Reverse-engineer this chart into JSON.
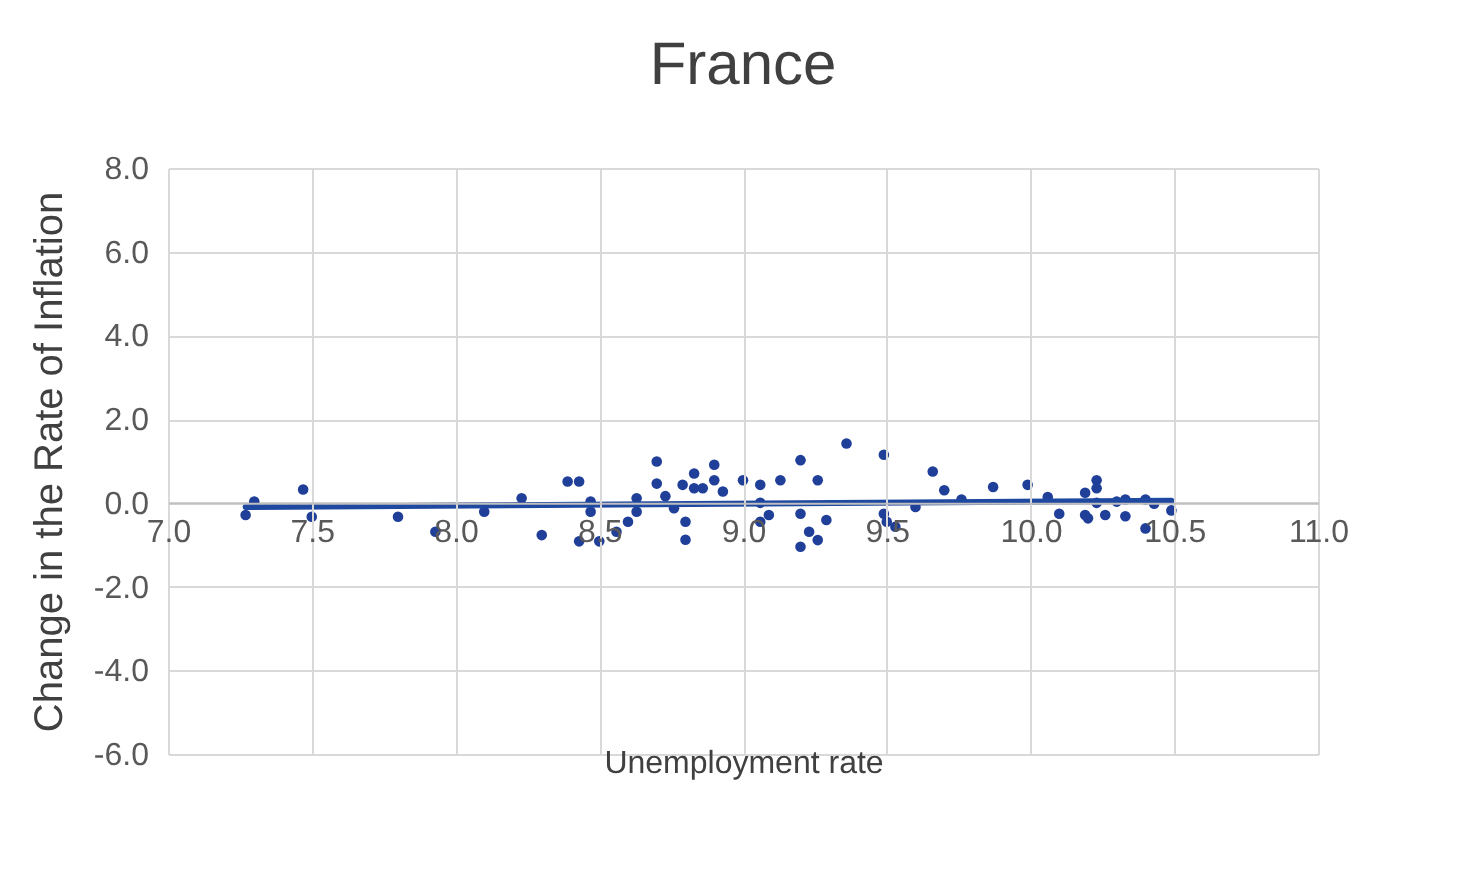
{
  "chart_data": {
    "type": "scatter",
    "title": "France",
    "xlabel": "Unemployment rate",
    "ylabel": "Change in the Rate of Inflation",
    "xlim": [
      7,
      11
    ],
    "xticks": [
      {
        "value": 7,
        "label": "7.0"
      },
      {
        "value": 7.5,
        "label": "7.5"
      },
      {
        "value": 8,
        "label": "8.0"
      },
      {
        "value": 8.5,
        "label": "8.5"
      },
      {
        "value": 9,
        "label": "9.0"
      },
      {
        "value": 9.5,
        "label": "9.5"
      },
      {
        "value": 10,
        "label": "10.0"
      },
      {
        "value": 10.5,
        "label": "10.5"
      },
      {
        "value": 11,
        "label": "11.0"
      }
    ],
    "ylim": [
      -6,
      8
    ],
    "yticks": [
      {
        "value": -6,
        "label": "-6.0"
      },
      {
        "value": -4,
        "label": "-4.0"
      },
      {
        "value": -2,
        "label": "-2.0"
      },
      {
        "value": 0,
        "label": "0.0"
      },
      {
        "value": 2,
        "label": "2.0"
      },
      {
        "value": 4,
        "label": "4.0"
      },
      {
        "value": 6,
        "label": "6.0"
      },
      {
        "value": 8,
        "label": "8.0"
      }
    ],
    "grid": true,
    "series": [
      {
        "marker": "circle",
        "color": "#1f3f99",
        "x": [
          7.27,
          7.3,
          7.47,
          7.5,
          7.8,
          7.93,
          8.1,
          8.23,
          8.3,
          8.39,
          8.43,
          8.43,
          8.47,
          8.47,
          8.5,
          8.56,
          8.6,
          8.63,
          8.63,
          8.7,
          8.7,
          8.73,
          8.76,
          8.79,
          8.8,
          8.8,
          8.83,
          8.83,
          8.86,
          8.9,
          8.9,
          8.93,
          9.0,
          9.06,
          9.06,
          9.06,
          9.09,
          9.13,
          9.2,
          9.2,
          9.2,
          9.23,
          9.26,
          9.26,
          9.29,
          9.36,
          9.49,
          9.49,
          9.5,
          9.53,
          9.6,
          9.66,
          9.7,
          9.76,
          9.87,
          9.99,
          10.06,
          10.1,
          10.19,
          10.19,
          10.2,
          10.23,
          10.23,
          10.23,
          10.26,
          10.3,
          10.33,
          10.33,
          10.4,
          10.4,
          10.43,
          10.49
        ],
        "values": [
          -0.29,
          0.03,
          0.32,
          -0.33,
          -0.33,
          -0.69,
          -0.21,
          0.11,
          -0.77,
          0.51,
          0.51,
          -0.92,
          0.03,
          -0.21,
          -0.92,
          -0.69,
          -0.45,
          -0.21,
          0.11,
          0.99,
          0.46,
          0.16,
          -0.13,
          0.43,
          -0.45,
          -0.88,
          0.7,
          0.35,
          0.35,
          0.91,
          0.54,
          0.27,
          0.54,
          0.43,
          0.0,
          -0.45,
          -0.29,
          0.54,
          1.02,
          -0.26,
          -1.05,
          -0.69,
          0.54,
          -0.89,
          -0.41,
          1.42,
          1.15,
          -0.26,
          -0.45,
          -0.57,
          -0.1,
          0.75,
          0.3,
          0.08,
          0.38,
          0.43,
          0.14,
          -0.26,
          0.24,
          -0.29,
          -0.37,
          0.54,
          0.35,
          0.0,
          -0.29,
          0.03,
          0.08,
          -0.32,
          0.08,
          -0.61,
          -0.02,
          -0.18
        ]
      },
      {
        "type": "line",
        "color": "#1f49a0",
        "x": [
          7.27,
          10.49
        ],
        "values": [
          -0.1,
          0.05
        ]
      }
    ]
  }
}
